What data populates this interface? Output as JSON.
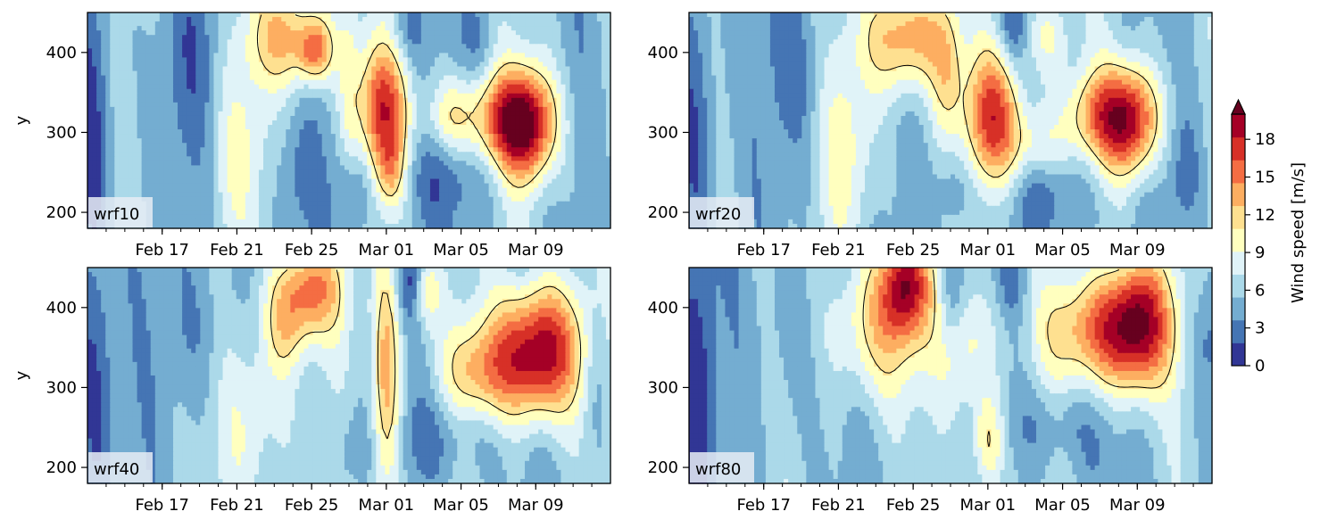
{
  "colors": {
    "scale": [
      "#313695",
      "#4575b4",
      "#74add1",
      "#abd9e9",
      "#e0f3f8",
      "#ffffbf",
      "#fee090",
      "#fdae61",
      "#f46d43",
      "#d73027",
      "#a50026"
    ],
    "extend_max": "#67001f",
    "contour_line": "#000000",
    "tag_background": "#e6ecf5"
  },
  "chart_data": [
    {
      "type": "heatmap",
      "panel": "wrf10",
      "label": "wrf10",
      "ylabel": "y",
      "xlabel": "",
      "x_tick_labels": [
        "Feb 17",
        "Feb 21",
        "Feb 25",
        "Mar 01",
        "Mar 05",
        "Mar 09"
      ],
      "x_range": [
        "2015-02-13",
        "2015-03-13"
      ],
      "y_ticks": [
        200,
        300,
        400
      ],
      "ylim": [
        180,
        450
      ],
      "contour_level": 11,
      "background_speed": 5.5,
      "features": [
        {
          "day": 0.3,
          "y": 300,
          "amp": -4.5,
          "sd": 0.8,
          "sy": 160
        },
        {
          "day": 6.0,
          "y": 380,
          "amp": -2.5,
          "sd": 1.4,
          "sy": 90
        },
        {
          "day": 8.0,
          "y": 290,
          "amp": 3.5,
          "sd": 1.2,
          "sy": 90
        },
        {
          "day": 11.0,
          "y": 240,
          "amp": -2.0,
          "sd": 0.8,
          "sy": 60
        },
        {
          "day": 11.0,
          "y": 420,
          "amp": 8.0,
          "sd": 1.6,
          "sy": 45
        },
        {
          "day": 12.2,
          "y": 400,
          "amp": 6.5,
          "sd": 0.6,
          "sy": 25
        },
        {
          "day": 14.0,
          "y": 360,
          "amp": 3.0,
          "sd": 0.4,
          "sy": 80
        },
        {
          "day": 14.2,
          "y": 230,
          "amp": -3.0,
          "sd": 0.7,
          "sy": 40
        },
        {
          "day": 15.8,
          "y": 330,
          "amp": 11.0,
          "sd": 0.95,
          "sy": 55
        },
        {
          "day": 16.2,
          "y": 250,
          "amp": 5.5,
          "sd": 0.6,
          "sy": 35
        },
        {
          "day": 17.2,
          "y": 430,
          "amp": -2.5,
          "sd": 0.6,
          "sy": 30
        },
        {
          "day": 19.5,
          "y": 320,
          "amp": 5.5,
          "sd": 1.0,
          "sy": 35
        },
        {
          "day": 19.0,
          "y": 240,
          "amp": -2.5,
          "sd": 2.0,
          "sy": 40
        },
        {
          "day": 23.6,
          "y": 310,
          "amp": 13.5,
          "sd": 1.1,
          "sy": 50
        },
        {
          "day": 22.0,
          "y": 315,
          "amp": 7.0,
          "sd": 1.2,
          "sy": 40
        },
        {
          "day": 21.0,
          "y": 420,
          "amp": -2.0,
          "sd": 0.6,
          "sy": 35
        }
      ]
    },
    {
      "type": "heatmap",
      "panel": "wrf20",
      "label": "wrf20",
      "ylabel": "",
      "xlabel": "",
      "x_tick_labels": [
        "Feb 17",
        "Feb 21",
        "Feb 25",
        "Mar 01",
        "Mar 05",
        "Mar 09"
      ],
      "x_range": [
        "2015-02-13",
        "2015-03-13"
      ],
      "y_ticks": [
        200,
        300,
        400
      ],
      "ylim": [
        180,
        450
      ],
      "contour_level": 11,
      "background_speed": 5.5,
      "features": [
        {
          "day": 0.3,
          "y": 300,
          "amp": -4.5,
          "sd": 0.8,
          "sy": 160
        },
        {
          "day": 6.0,
          "y": 380,
          "amp": -2.5,
          "sd": 1.4,
          "sy": 90
        },
        {
          "day": 8.5,
          "y": 290,
          "amp": 4.0,
          "sd": 1.2,
          "sy": 90
        },
        {
          "day": 11.5,
          "y": 420,
          "amp": 9.5,
          "sd": 1.5,
          "sy": 50
        },
        {
          "day": 13.8,
          "y": 380,
          "amp": 4.0,
          "sd": 0.6,
          "sy": 60
        },
        {
          "day": 14.2,
          "y": 230,
          "amp": -3.0,
          "sd": 0.7,
          "sy": 40
        },
        {
          "day": 16.3,
          "y": 320,
          "amp": 11.5,
          "sd": 1.1,
          "sy": 60
        },
        {
          "day": 17.3,
          "y": 430,
          "amp": -3.0,
          "sd": 0.5,
          "sy": 30
        },
        {
          "day": 18.5,
          "y": 280,
          "amp": 4.5,
          "sd": 1.2,
          "sy": 35
        },
        {
          "day": 19.2,
          "y": 420,
          "amp": 4.0,
          "sd": 0.8,
          "sy": 35
        },
        {
          "day": 23.7,
          "y": 315,
          "amp": 13.0,
          "sd": 1.1,
          "sy": 50
        },
        {
          "day": 21.8,
          "y": 320,
          "amp": 7.0,
          "sd": 1.2,
          "sy": 40
        },
        {
          "day": 19.5,
          "y": 230,
          "amp": -3.0,
          "sd": 1.8,
          "sy": 40
        },
        {
          "day": 26.5,
          "y": 250,
          "amp": -2.5,
          "sd": 0.7,
          "sy": 60
        }
      ]
    },
    {
      "type": "heatmap",
      "panel": "wrf40",
      "label": "wrf40",
      "ylabel": "y",
      "xlabel": "",
      "x_tick_labels": [
        "Feb 17",
        "Feb 21",
        "Feb 25",
        "Mar 01",
        "Mar 05",
        "Mar 09"
      ],
      "x_range": [
        "2015-02-13",
        "2015-03-13"
      ],
      "y_ticks": [
        200,
        300,
        400
      ],
      "ylim": [
        180,
        450
      ],
      "contour_level": 11,
      "background_speed": 5.5,
      "features": [
        {
          "day": 0.3,
          "y": 300,
          "amp": -4.5,
          "sd": 0.8,
          "sy": 160
        },
        {
          "day": 6.0,
          "y": 380,
          "amp": -2.5,
          "sd": 1.4,
          "sy": 90
        },
        {
          "day": 9.0,
          "y": 260,
          "amp": 4.0,
          "sd": 1.5,
          "sy": 90
        },
        {
          "day": 11.8,
          "y": 420,
          "amp": 9.5,
          "sd": 1.3,
          "sy": 45
        },
        {
          "day": 10.5,
          "y": 370,
          "amp": 4.0,
          "sd": 0.8,
          "sy": 45
        },
        {
          "day": 14.2,
          "y": 220,
          "amp": -2.5,
          "sd": 0.7,
          "sy": 40
        },
        {
          "day": 16.0,
          "y": 310,
          "amp": 8.5,
          "sd": 0.55,
          "sy": 120
        },
        {
          "day": 17.2,
          "y": 430,
          "amp": -3.0,
          "sd": 0.5,
          "sy": 30
        },
        {
          "day": 18.2,
          "y": 420,
          "amp": 5.0,
          "sd": 0.5,
          "sy": 35
        },
        {
          "day": 24.2,
          "y": 345,
          "amp": 15.0,
          "sd": 1.6,
          "sy": 60
        },
        {
          "day": 21.0,
          "y": 320,
          "amp": 6.5,
          "sd": 1.5,
          "sy": 45
        },
        {
          "day": 19.5,
          "y": 240,
          "amp": -2.5,
          "sd": 2.0,
          "sy": 40
        },
        {
          "day": 27.3,
          "y": 320,
          "amp": -2.5,
          "sd": 0.5,
          "sy": 60
        }
      ]
    },
    {
      "type": "heatmap",
      "panel": "wrf80",
      "label": "wrf80",
      "ylabel": "",
      "xlabel": "",
      "x_tick_labels": [
        "Feb 17",
        "Feb 21",
        "Feb 25",
        "Mar 01",
        "Mar 05",
        "Mar 09"
      ],
      "x_range": [
        "2015-02-13",
        "2015-03-13"
      ],
      "y_ticks": [
        200,
        300,
        400
      ],
      "ylim": [
        180,
        450
      ],
      "contour_level": 11,
      "background_speed": 5.5,
      "features": [
        {
          "day": 0.3,
          "y": 300,
          "amp": -4.5,
          "sd": 0.8,
          "sy": 160
        },
        {
          "day": 6.0,
          "y": 380,
          "amp": -2.5,
          "sd": 1.4,
          "sy": 90
        },
        {
          "day": 10.0,
          "y": 380,
          "amp": 7.0,
          "sd": 2.0,
          "sy": 70
        },
        {
          "day": 11.6,
          "y": 430,
          "amp": 10.5,
          "sd": 0.9,
          "sy": 45
        },
        {
          "day": 14.0,
          "y": 410,
          "amp": -3.0,
          "sd": 0.5,
          "sy": 40
        },
        {
          "day": 16.0,
          "y": 230,
          "amp": 7.0,
          "sd": 0.6,
          "sy": 45
        },
        {
          "day": 15.0,
          "y": 350,
          "amp": 5.0,
          "sd": 1.0,
          "sy": 60
        },
        {
          "day": 17.3,
          "y": 430,
          "amp": -2.5,
          "sd": 0.5,
          "sy": 30
        },
        {
          "day": 24.0,
          "y": 380,
          "amp": 14.0,
          "sd": 1.3,
          "sy": 60
        },
        {
          "day": 21.5,
          "y": 370,
          "amp": 8.0,
          "sd": 1.8,
          "sy": 50
        },
        {
          "day": 19.5,
          "y": 250,
          "amp": -2.5,
          "sd": 2.0,
          "sy": 40
        },
        {
          "day": 27.8,
          "y": 360,
          "amp": -3.0,
          "sd": 0.6,
          "sy": 60
        }
      ]
    }
  ],
  "colorbar": {
    "label": "Wind speed [m/s]",
    "tick_labels": [
      "0",
      "3",
      "6",
      "9",
      "12",
      "15",
      "18"
    ],
    "ticks": [
      0,
      3,
      6,
      9,
      12,
      15,
      18
    ],
    "range": [
      0,
      20
    ],
    "extend": "max"
  }
}
